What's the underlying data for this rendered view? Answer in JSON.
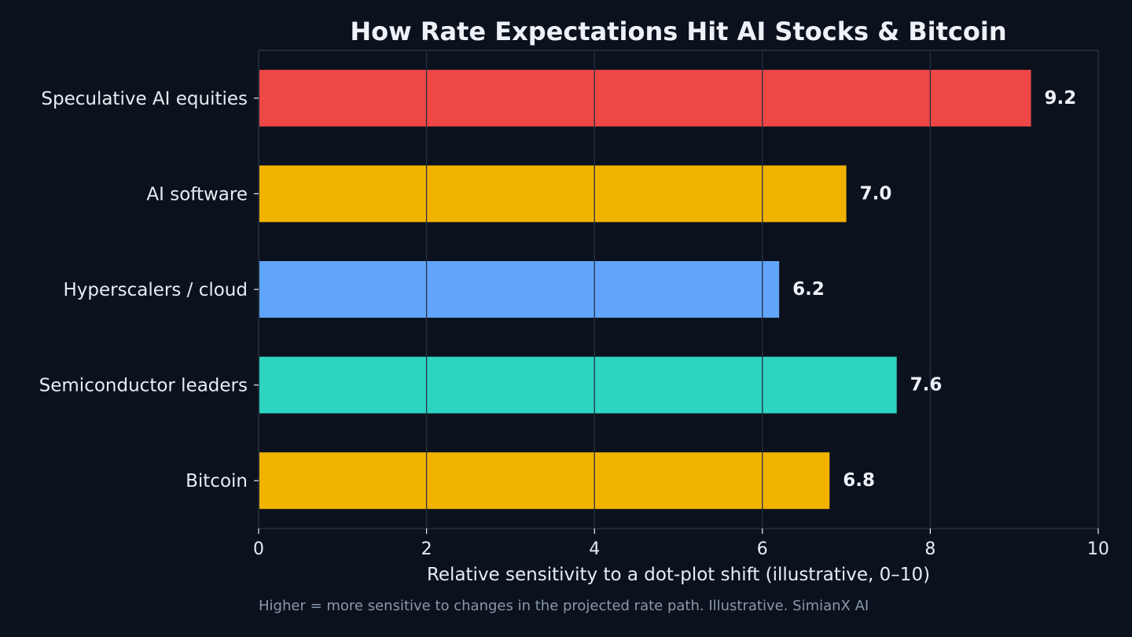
{
  "chart_data": {
    "type": "bar",
    "orientation": "horizontal",
    "title": "How Rate Expectations Hit AI Stocks & Bitcoin",
    "xlabel": "Relative sensitivity to a dot-plot shift (illustrative, 0–10)",
    "ylabel": "",
    "categories": [
      "Speculative AI equities",
      "AI software",
      "Hyperscalers / cloud",
      "Semiconductor leaders",
      "Bitcoin"
    ],
    "values": [
      9.2,
      7.0,
      6.2,
      7.6,
      6.8
    ],
    "value_labels": [
      "9.2",
      "7.0",
      "6.2",
      "7.6",
      "6.8"
    ],
    "bar_colors": [
      "#ef4646",
      "#f2b300",
      "#60a5fa",
      "#2dd4c2",
      "#f2b300"
    ],
    "xlim": [
      0,
      10
    ],
    "xticks": [
      0,
      2,
      4,
      6,
      8,
      10
    ],
    "xtick_labels": [
      "0",
      "2",
      "4",
      "6",
      "8",
      "10"
    ],
    "grid": "vertical",
    "legend": "none",
    "footnote": "Higher = more sensitive to changes in the projected rate path. Illustrative. SimianX AI"
  },
  "colors": {
    "background": "#0b121d",
    "grid": "#243042",
    "axis": "#2b3748",
    "text": "#e8ecf3",
    "muted_text": "#8a97ab"
  }
}
